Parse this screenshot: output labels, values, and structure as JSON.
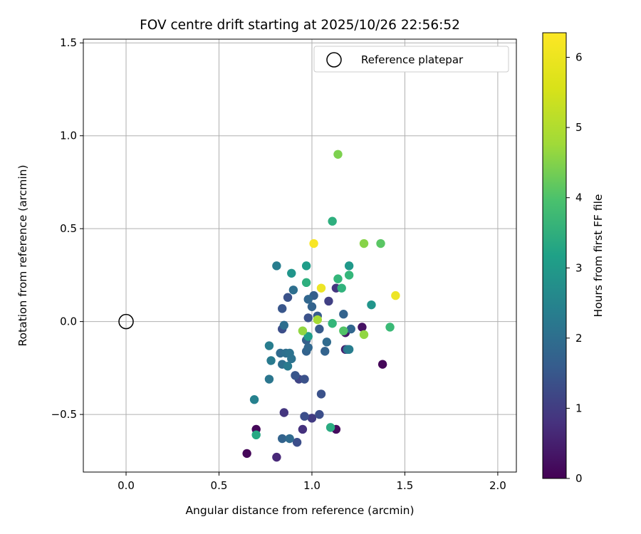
{
  "chart_data": {
    "type": "scatter",
    "title": "FOV centre drift starting at 2025/10/26 22:56:52",
    "xlabel": "Angular distance from reference (arcmin)",
    "ylabel": "Rotation from reference (arcmin)",
    "xlim": [
      -0.23,
      2.1
    ],
    "ylim": [
      -0.81,
      1.52
    ],
    "xticks": [
      0.0,
      0.5,
      1.0,
      1.5,
      2.0
    ],
    "xtick_labels": [
      "0.0",
      "0.5",
      "1.0",
      "1.5",
      "2.0"
    ],
    "yticks": [
      -0.5,
      0.0,
      0.5,
      1.0,
      1.5
    ],
    "ytick_labels": [
      "−0.5",
      "0.0",
      "0.5",
      "1.0",
      "1.5"
    ],
    "grid": true,
    "legend": {
      "location": "top-right",
      "entries": [
        "Reference platepar"
      ]
    },
    "reference_point": {
      "x": 0.0,
      "y": 0.0,
      "label": "Reference platepar"
    },
    "colorbar": {
      "label": "Hours from first FF file",
      "range": [
        0,
        6.35
      ],
      "ticks": [
        0,
        1,
        2,
        3,
        4,
        5,
        6
      ],
      "tick_labels": [
        "0",
        "1",
        "2",
        "3",
        "4",
        "5",
        "6"
      ],
      "colormap": "viridis"
    },
    "points": [
      {
        "x": 0.65,
        "y": -0.71,
        "h": 0.1
      },
      {
        "x": 0.7,
        "y": -0.58,
        "h": 0.1
      },
      {
        "x": 1.13,
        "y": -0.58,
        "h": 0.2
      },
      {
        "x": 1.38,
        "y": -0.23,
        "h": 0.1
      },
      {
        "x": 1.27,
        "y": -0.03,
        "h": 0.3
      },
      {
        "x": 1.18,
        "y": -0.06,
        "h": 0.4
      },
      {
        "x": 1.18,
        "y": -0.15,
        "h": 0.5
      },
      {
        "x": 0.81,
        "y": -0.73,
        "h": 0.7
      },
      {
        "x": 0.95,
        "y": -0.58,
        "h": 0.9
      },
      {
        "x": 0.85,
        "y": -0.49,
        "h": 1.0
      },
      {
        "x": 1.0,
        "y": -0.52,
        "h": 1.1
      },
      {
        "x": 1.13,
        "y": 0.18,
        "h": 1.0
      },
      {
        "x": 1.09,
        "y": 0.11,
        "h": 1.2
      },
      {
        "x": 0.93,
        "y": -0.31,
        "h": 1.3
      },
      {
        "x": 0.92,
        "y": -0.65,
        "h": 1.5
      },
      {
        "x": 0.96,
        "y": -0.51,
        "h": 1.5
      },
      {
        "x": 1.04,
        "y": -0.5,
        "h": 1.5
      },
      {
        "x": 1.05,
        "y": -0.39,
        "h": 1.6
      },
      {
        "x": 0.96,
        "y": -0.31,
        "h": 1.6
      },
      {
        "x": 0.91,
        "y": -0.29,
        "h": 1.7
      },
      {
        "x": 0.84,
        "y": -0.04,
        "h": 1.5
      },
      {
        "x": 0.87,
        "y": 0.13,
        "h": 1.6
      },
      {
        "x": 0.84,
        "y": 0.07,
        "h": 1.7
      },
      {
        "x": 0.98,
        "y": 0.02,
        "h": 1.6
      },
      {
        "x": 1.03,
        "y": 0.03,
        "h": 1.8
      },
      {
        "x": 1.04,
        "y": -0.04,
        "h": 1.8
      },
      {
        "x": 1.01,
        "y": 0.14,
        "h": 1.9
      },
      {
        "x": 1.0,
        "y": 0.08,
        "h": 2.0
      },
      {
        "x": 0.98,
        "y": 0.12,
        "h": 2.1
      },
      {
        "x": 0.97,
        "y": -0.1,
        "h": 1.9
      },
      {
        "x": 0.97,
        "y": -0.16,
        "h": 2.0
      },
      {
        "x": 0.98,
        "y": -0.14,
        "h": 2.1
      },
      {
        "x": 1.07,
        "y": -0.16,
        "h": 2.0
      },
      {
        "x": 1.08,
        "y": -0.11,
        "h": 2.2
      },
      {
        "x": 1.17,
        "y": 0.04,
        "h": 2.0
      },
      {
        "x": 1.21,
        "y": -0.04,
        "h": 2.1
      },
      {
        "x": 1.19,
        "y": -0.15,
        "h": 2.4
      },
      {
        "x": 0.9,
        "y": 0.17,
        "h": 2.3
      },
      {
        "x": 0.85,
        "y": -0.02,
        "h": 2.3
      },
      {
        "x": 0.84,
        "y": -0.63,
        "h": 2.0
      },
      {
        "x": 0.88,
        "y": -0.63,
        "h": 2.2
      },
      {
        "x": 0.83,
        "y": -0.17,
        "h": 2.2
      },
      {
        "x": 0.86,
        "y": -0.17,
        "h": 2.3
      },
      {
        "x": 0.88,
        "y": -0.17,
        "h": 2.4
      },
      {
        "x": 0.84,
        "y": -0.23,
        "h": 2.3
      },
      {
        "x": 0.87,
        "y": -0.24,
        "h": 2.6
      },
      {
        "x": 0.89,
        "y": -0.2,
        "h": 2.4
      },
      {
        "x": 0.78,
        "y": -0.21,
        "h": 2.6
      },
      {
        "x": 0.77,
        "y": -0.13,
        "h": 2.7
      },
      {
        "x": 0.77,
        "y": -0.31,
        "h": 2.5
      },
      {
        "x": 0.69,
        "y": -0.42,
        "h": 2.8
      },
      {
        "x": 0.81,
        "y": 0.3,
        "h": 2.7
      },
      {
        "x": 1.2,
        "y": -0.15,
        "h": 2.7
      },
      {
        "x": 0.89,
        "y": 0.26,
        "h": 3.3
      },
      {
        "x": 0.97,
        "y": 0.3,
        "h": 3.5
      },
      {
        "x": 1.2,
        "y": 0.3,
        "h": 3.4
      },
      {
        "x": 1.32,
        "y": 0.09,
        "h": 3.3
      },
      {
        "x": 0.98,
        "y": -0.08,
        "h": 3.5
      },
      {
        "x": 0.7,
        "y": -0.61,
        "h": 3.8
      },
      {
        "x": 1.1,
        "y": -0.57,
        "h": 3.9
      },
      {
        "x": 1.11,
        "y": 0.54,
        "h": 4.0
      },
      {
        "x": 0.97,
        "y": 0.21,
        "h": 4.0
      },
      {
        "x": 1.14,
        "y": 0.23,
        "h": 4.2
      },
      {
        "x": 1.16,
        "y": 0.18,
        "h": 4.1
      },
      {
        "x": 1.2,
        "y": 0.25,
        "h": 4.2
      },
      {
        "x": 1.11,
        "y": -0.01,
        "h": 4.2
      },
      {
        "x": 1.42,
        "y": -0.03,
        "h": 4.3
      },
      {
        "x": 1.37,
        "y": 0.42,
        "h": 4.7
      },
      {
        "x": 1.17,
        "y": -0.05,
        "h": 4.6
      },
      {
        "x": 1.14,
        "y": 0.9,
        "h": 5.1
      },
      {
        "x": 1.28,
        "y": 0.42,
        "h": 5.2
      },
      {
        "x": 1.28,
        "y": -0.07,
        "h": 5.3
      },
      {
        "x": 0.95,
        "y": -0.05,
        "h": 5.3
      },
      {
        "x": 1.03,
        "y": 0.01,
        "h": 5.5
      },
      {
        "x": 1.01,
        "y": 0.42,
        "h": 6.3
      },
      {
        "x": 1.05,
        "y": 0.18,
        "h": 6.2
      },
      {
        "x": 1.45,
        "y": 0.14,
        "h": 6.2
      }
    ]
  }
}
